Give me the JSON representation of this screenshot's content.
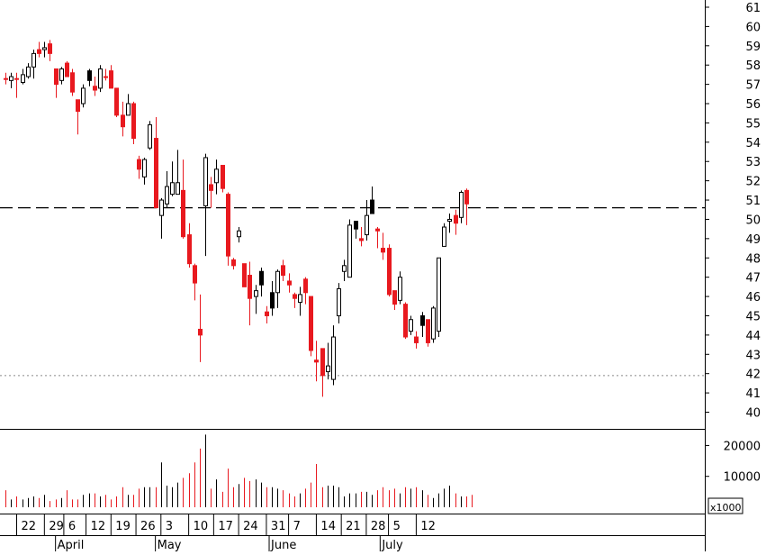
{
  "chart_data": {
    "type": "candlestick",
    "y_ticks": [
      40,
      41,
      42,
      43,
      44,
      45,
      46,
      47,
      48,
      49,
      50,
      51,
      52,
      53,
      54,
      55,
      56,
      57,
      58,
      59,
      60,
      61
    ],
    "ylim": [
      39.5,
      61.2
    ],
    "xlim": [
      0,
      127
    ],
    "reference_lines": [
      {
        "value": 50.6,
        "style": "dashed"
      },
      {
        "value": 41.9,
        "style": "dotted"
      }
    ],
    "candles": [
      {
        "x": 1,
        "o": 57.3,
        "h": 57.6,
        "l": 57.0,
        "c": 57.3,
        "color": "red"
      },
      {
        "x": 2,
        "o": 57.2,
        "h": 57.6,
        "l": 56.8,
        "c": 57.4,
        "color": "white"
      },
      {
        "x": 3,
        "o": 57.3,
        "h": 57.6,
        "l": 56.3,
        "c": 57.3,
        "color": "red"
      },
      {
        "x": 4,
        "o": 57.1,
        "h": 57.8,
        "l": 57.0,
        "c": 57.5,
        "color": "white"
      },
      {
        "x": 5,
        "o": 57.4,
        "h": 58.1,
        "l": 57.3,
        "c": 57.9,
        "color": "white"
      },
      {
        "x": 6,
        "o": 57.9,
        "h": 58.8,
        "l": 57.3,
        "c": 58.6,
        "color": "white"
      },
      {
        "x": 7,
        "o": 58.6,
        "h": 59.2,
        "l": 58.4,
        "c": 58.8,
        "color": "red"
      },
      {
        "x": 8,
        "o": 58.8,
        "h": 59.2,
        "l": 58.4,
        "c": 58.9,
        "color": "white"
      },
      {
        "x": 9,
        "o": 59.1,
        "h": 59.3,
        "l": 58.2,
        "c": 58.6,
        "color": "red"
      },
      {
        "x": 10,
        "o": 57.8,
        "h": 57.8,
        "l": 56.3,
        "c": 57.0,
        "color": "red"
      },
      {
        "x": 11,
        "o": 57.2,
        "h": 57.9,
        "l": 57.0,
        "c": 57.8,
        "color": "white"
      },
      {
        "x": 12,
        "o": 58.1,
        "h": 58.2,
        "l": 57.6,
        "c": 57.4,
        "color": "red"
      },
      {
        "x": 13,
        "o": 57.6,
        "h": 57.8,
        "l": 56.4,
        "c": 56.6,
        "color": "red"
      },
      {
        "x": 14,
        "o": 56.2,
        "h": 56.2,
        "l": 54.4,
        "c": 55.6,
        "color": "red"
      },
      {
        "x": 15,
        "o": 56.0,
        "h": 57.0,
        "l": 55.8,
        "c": 56.8,
        "color": "white"
      },
      {
        "x": 16,
        "o": 57.2,
        "h": 57.8,
        "l": 56.9,
        "c": 57.7,
        "color": "black"
      },
      {
        "x": 17,
        "o": 56.9,
        "h": 57.4,
        "l": 56.4,
        "c": 56.7,
        "color": "red"
      },
      {
        "x": 18,
        "o": 56.8,
        "h": 58.0,
        "l": 56.6,
        "c": 57.8,
        "color": "white"
      },
      {
        "x": 19,
        "o": 57.4,
        "h": 57.8,
        "l": 57.2,
        "c": 57.4,
        "color": "red"
      },
      {
        "x": 20,
        "o": 57.7,
        "h": 58.0,
        "l": 56.8,
        "c": 56.8,
        "color": "red"
      },
      {
        "x": 21,
        "o": 56.8,
        "h": 56.8,
        "l": 55.3,
        "c": 55.4,
        "color": "red"
      },
      {
        "x": 22,
        "o": 55.4,
        "h": 56.1,
        "l": 54.3,
        "c": 54.8,
        "color": "red"
      },
      {
        "x": 23,
        "o": 55.4,
        "h": 56.5,
        "l": 55.4,
        "c": 56.0,
        "color": "white"
      },
      {
        "x": 24,
        "o": 56.0,
        "h": 56.1,
        "l": 53.9,
        "c": 54.2,
        "color": "red"
      },
      {
        "x": 25,
        "o": 53.1,
        "h": 53.3,
        "l": 52.1,
        "c": 52.6,
        "color": "red"
      },
      {
        "x": 26,
        "o": 52.2,
        "h": 53.2,
        "l": 51.8,
        "c": 53.1,
        "color": "white"
      },
      {
        "x": 27,
        "o": 53.7,
        "h": 55.1,
        "l": 53.6,
        "c": 54.9,
        "color": "white"
      },
      {
        "x": 28,
        "o": 54.2,
        "h": 55.3,
        "l": 50.6,
        "c": 50.6,
        "color": "red"
      },
      {
        "x": 29,
        "o": 50.2,
        "h": 51.1,
        "l": 49.0,
        "c": 51.0,
        "color": "white"
      },
      {
        "x": 30,
        "o": 50.8,
        "h": 52.5,
        "l": 50.6,
        "c": 51.7,
        "color": "white"
      },
      {
        "x": 31,
        "o": 51.3,
        "h": 53.0,
        "l": 51.2,
        "c": 51.9,
        "color": "white"
      },
      {
        "x": 32,
        "o": 51.9,
        "h": 53.6,
        "l": 51.3,
        "c": 51.3,
        "color": "white"
      },
      {
        "x": 33,
        "o": 51.5,
        "h": 53.1,
        "l": 49.0,
        "c": 49.1,
        "color": "red"
      },
      {
        "x": 34,
        "o": 49.2,
        "h": 49.8,
        "l": 47.5,
        "c": 47.7,
        "color": "red"
      },
      {
        "x": 35,
        "o": 47.6,
        "h": 47.7,
        "l": 45.8,
        "c": 46.7,
        "color": "red"
      },
      {
        "x": 36,
        "o": 44.3,
        "h": 46.1,
        "l": 42.6,
        "c": 44.0,
        "color": "red"
      },
      {
        "x": 37,
        "o": 50.7,
        "h": 53.4,
        "l": 48.1,
        "c": 53.2,
        "color": "white"
      },
      {
        "x": 38,
        "o": 51.5,
        "h": 52.2,
        "l": 50.6,
        "c": 51.8,
        "color": "red"
      },
      {
        "x": 39,
        "o": 51.9,
        "h": 53.1,
        "l": 51.3,
        "c": 52.6,
        "color": "white"
      },
      {
        "x": 40,
        "o": 52.8,
        "h": 52.8,
        "l": 51.4,
        "c": 51.6,
        "color": "red"
      },
      {
        "x": 41,
        "o": 51.3,
        "h": 51.4,
        "l": 47.6,
        "c": 48.1,
        "color": "red"
      },
      {
        "x": 42,
        "o": 47.9,
        "h": 48.0,
        "l": 47.4,
        "c": 47.6,
        "color": "red"
      },
      {
        "x": 43,
        "o": 49.1,
        "h": 49.6,
        "l": 48.8,
        "c": 49.4,
        "color": "white"
      },
      {
        "x": 44,
        "o": 47.7,
        "h": 47.7,
        "l": 46.5,
        "c": 46.5,
        "color": "red"
      },
      {
        "x": 45,
        "o": 47.1,
        "h": 47.8,
        "l": 44.5,
        "c": 45.9,
        "color": "red"
      },
      {
        "x": 46,
        "o": 46.0,
        "h": 46.6,
        "l": 45.1,
        "c": 46.3,
        "color": "white"
      },
      {
        "x": 47,
        "o": 46.6,
        "h": 47.5,
        "l": 46.0,
        "c": 47.3,
        "color": "black"
      },
      {
        "x": 48,
        "o": 45.2,
        "h": 45.5,
        "l": 44.6,
        "c": 45.0,
        "color": "red"
      },
      {
        "x": 49,
        "o": 45.4,
        "h": 46.8,
        "l": 45.0,
        "c": 46.2,
        "color": "black"
      },
      {
        "x": 50,
        "o": 46.2,
        "h": 47.4,
        "l": 45.4,
        "c": 47.3,
        "color": "white"
      },
      {
        "x": 51,
        "o": 47.6,
        "h": 47.9,
        "l": 46.8,
        "c": 47.1,
        "color": "red"
      },
      {
        "x": 52,
        "o": 46.8,
        "h": 47.2,
        "l": 46.2,
        "c": 46.6,
        "color": "red"
      },
      {
        "x": 53,
        "o": 46.1,
        "h": 46.2,
        "l": 45.4,
        "c": 45.9,
        "color": "red"
      },
      {
        "x": 54,
        "o": 45.7,
        "h": 46.5,
        "l": 45.0,
        "c": 46.1,
        "color": "white"
      },
      {
        "x": 55,
        "o": 46.9,
        "h": 47.0,
        "l": 45.6,
        "c": 46.2,
        "color": "red"
      },
      {
        "x": 56,
        "o": 46.0,
        "h": 46.0,
        "l": 42.9,
        "c": 43.2,
        "color": "red"
      },
      {
        "x": 57,
        "o": 42.7,
        "h": 43.7,
        "l": 41.6,
        "c": 42.6,
        "color": "red"
      },
      {
        "x": 58,
        "o": 43.3,
        "h": 43.3,
        "l": 40.8,
        "c": 41.9,
        "color": "red"
      },
      {
        "x": 59,
        "o": 42.1,
        "h": 43.6,
        "l": 41.7,
        "c": 42.4,
        "color": "white"
      },
      {
        "x": 60,
        "o": 41.7,
        "h": 44.5,
        "l": 41.4,
        "c": 43.9,
        "color": "white"
      },
      {
        "x": 61,
        "o": 45.0,
        "h": 46.7,
        "l": 44.6,
        "c": 46.4,
        "color": "white"
      },
      {
        "x": 62,
        "o": 47.3,
        "h": 47.9,
        "l": 46.8,
        "c": 47.6,
        "color": "white"
      },
      {
        "x": 63,
        "o": 47.0,
        "h": 50.0,
        "l": 47.0,
        "c": 49.7,
        "color": "white"
      },
      {
        "x": 64,
        "o": 49.5,
        "h": 49.9,
        "l": 49.0,
        "c": 49.9,
        "color": "black"
      },
      {
        "x": 65,
        "o": 49.0,
        "h": 49.6,
        "l": 48.6,
        "c": 48.9,
        "color": "red"
      },
      {
        "x": 66,
        "o": 49.2,
        "h": 51.0,
        "l": 48.9,
        "c": 50.2,
        "color": "white"
      },
      {
        "x": 67,
        "o": 50.3,
        "h": 51.7,
        "l": 50.3,
        "c": 51.0,
        "color": "black"
      },
      {
        "x": 68,
        "o": 49.5,
        "h": 49.6,
        "l": 48.5,
        "c": 49.4,
        "color": "red"
      },
      {
        "x": 69,
        "o": 48.5,
        "h": 49.3,
        "l": 47.9,
        "c": 48.3,
        "color": "red"
      },
      {
        "x": 70,
        "o": 48.5,
        "h": 48.7,
        "l": 46.0,
        "c": 46.1,
        "color": "red"
      },
      {
        "x": 71,
        "o": 46.3,
        "h": 46.3,
        "l": 45.3,
        "c": 45.6,
        "color": "red"
      },
      {
        "x": 72,
        "o": 47.0,
        "h": 47.3,
        "l": 45.6,
        "c": 45.8,
        "color": "white"
      },
      {
        "x": 73,
        "o": 45.6,
        "h": 45.7,
        "l": 43.8,
        "c": 43.9,
        "color": "red"
      },
      {
        "x": 74,
        "o": 44.2,
        "h": 45.0,
        "l": 44.0,
        "c": 44.8,
        "color": "white"
      },
      {
        "x": 75,
        "o": 43.9,
        "h": 44.2,
        "l": 43.3,
        "c": 43.6,
        "color": "red"
      },
      {
        "x": 76,
        "o": 44.5,
        "h": 45.2,
        "l": 43.9,
        "c": 45.0,
        "color": "black"
      },
      {
        "x": 77,
        "o": 44.8,
        "h": 44.8,
        "l": 43.4,
        "c": 43.6,
        "color": "red"
      },
      {
        "x": 78,
        "o": 43.8,
        "h": 45.5,
        "l": 43.6,
        "c": 45.4,
        "color": "white"
      },
      {
        "x": 79,
        "o": 44.2,
        "h": 48.0,
        "l": 43.9,
        "c": 48.0,
        "color": "white"
      },
      {
        "x": 80,
        "o": 48.6,
        "h": 49.8,
        "l": 48.6,
        "c": 49.6,
        "color": "white"
      },
      {
        "x": 81,
        "o": 49.9,
        "h": 50.3,
        "l": 49.3,
        "c": 50.0,
        "color": "white"
      },
      {
        "x": 82,
        "o": 49.8,
        "h": 50.5,
        "l": 49.2,
        "c": 50.2,
        "color": "red"
      },
      {
        "x": 83,
        "o": 50.1,
        "h": 51.5,
        "l": 49.8,
        "c": 51.4,
        "color": "white"
      },
      {
        "x": 84,
        "o": 51.5,
        "h": 51.6,
        "l": 49.7,
        "c": 50.8,
        "color": "red"
      }
    ],
    "volume": {
      "unit_label": "x1000",
      "y_ticks": [
        10000,
        20000
      ],
      "ylim": [
        0,
        24500
      ],
      "values": [
        5500,
        2500,
        3500,
        2500,
        3000,
        3500,
        3000,
        4000,
        2000,
        2500,
        3000,
        5500,
        2500,
        2500,
        4000,
        4500,
        4500,
        3500,
        4000,
        2500,
        3500,
        6500,
        4000,
        4000,
        6000,
        6500,
        6500,
        6500,
        14500,
        7000,
        6500,
        8000,
        9500,
        11000,
        14500,
        19000,
        23500,
        6000,
        9000,
        5000,
        12500,
        6500,
        7500,
        9500,
        8500,
        9000,
        8000,
        6500,
        6500,
        6000,
        5500,
        4500,
        3500,
        4500,
        6000,
        8000,
        14000,
        6500,
        7000,
        7000,
        6500,
        3500,
        4500,
        4500,
        5000,
        5000,
        4000,
        5500,
        6500,
        5500,
        6000,
        4500,
        6500,
        6000,
        6500,
        5500,
        4000,
        3000,
        4500,
        6000,
        7000,
        4500,
        3500,
        3500,
        4000
      ],
      "colors": [
        "red",
        "white",
        "red",
        "white",
        "white",
        "white",
        "red",
        "white",
        "red",
        "red",
        "white",
        "red",
        "red",
        "red",
        "white",
        "black",
        "red",
        "white",
        "red",
        "red",
        "red",
        "red",
        "white",
        "red",
        "red",
        "white",
        "white",
        "red",
        "white",
        "white",
        "white",
        "white",
        "red",
        "red",
        "red",
        "red",
        "white",
        "red",
        "white",
        "red",
        "red",
        "red",
        "white",
        "red",
        "red",
        "white",
        "black",
        "red",
        "black",
        "white",
        "red",
        "red",
        "red",
        "white",
        "red",
        "red",
        "red",
        "red",
        "white",
        "white",
        "white",
        "white",
        "white",
        "black",
        "red",
        "white",
        "black",
        "red",
        "red",
        "red",
        "red",
        "white",
        "red",
        "white",
        "red",
        "black",
        "red",
        "white",
        "white",
        "white",
        "white",
        "red",
        "white",
        "red",
        "red"
      ]
    },
    "x_labels": [
      {
        "label": "22",
        "x": 3
      },
      {
        "label": "29",
        "x": 8
      },
      {
        "label": "6",
        "x": 11.5
      },
      {
        "label": "12",
        "x": 15.5
      },
      {
        "label": "19",
        "x": 20
      },
      {
        "label": "26",
        "x": 24.5
      },
      {
        "label": "3",
        "x": 29
      },
      {
        "label": "10",
        "x": 34
      },
      {
        "label": "17",
        "x": 38.5
      },
      {
        "label": "24",
        "x": 43
      },
      {
        "label": "31",
        "x": 48
      },
      {
        "label": "7",
        "x": 52
      },
      {
        "label": "14",
        "x": 57
      },
      {
        "label": "21",
        "x": 61.5
      },
      {
        "label": "28",
        "x": 66
      },
      {
        "label": "5",
        "x": 70
      },
      {
        "label": "12",
        "x": 75
      }
    ],
    "month_labels": [
      {
        "label": "April",
        "x": 10
      },
      {
        "label": "May",
        "x": 28
      },
      {
        "label": "June",
        "x": 48.5
      },
      {
        "label": "July",
        "x": 68.5
      }
    ]
  }
}
